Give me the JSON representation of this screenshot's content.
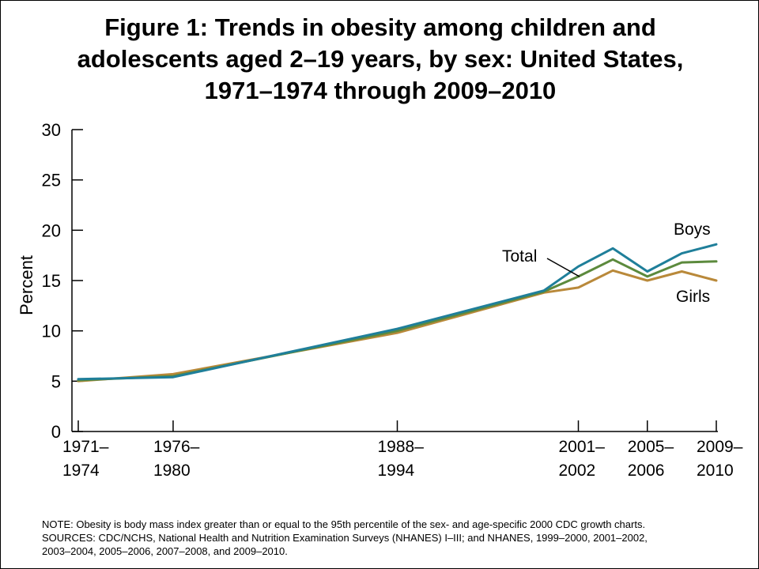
{
  "chart_data": {
    "type": "line",
    "title_lines": [
      "Figure 1: Trends in obesity among children and",
      "adolescents aged 2–19 years, by sex: United States,",
      "1971–1974 through 2009–2010"
    ],
    "ylabel": "Percent",
    "xlabel": "",
    "ylim": [
      0,
      30
    ],
    "yticks": [
      "0",
      "5",
      "10",
      "15",
      "20",
      "25",
      "30"
    ],
    "x_tick_labels": [
      {
        "line1": "1971–",
        "line2": "1974"
      },
      {
        "line1": "1976–",
        "line2": "1980"
      },
      {
        "line1": "1988–",
        "line2": "1994"
      },
      {
        "line1": "2001–",
        "line2": "2002"
      },
      {
        "line1": "2005–",
        "line2": "2006"
      },
      {
        "line1": "2009–",
        "line2": "2010"
      }
    ],
    "x": [
      1972.5,
      1978,
      1991,
      1999.5,
      2001.5,
      2003.5,
      2005.5,
      2007.5,
      2009.5
    ],
    "x_tick_positions": [
      1972.5,
      1978,
      1991,
      2001.5,
      2005.5,
      2009.5
    ],
    "xlim": [
      1972.5,
      2009.5
    ],
    "series": [
      {
        "name": "Girls",
        "label": "Girls",
        "color": "#b9893a",
        "values": [
          5.0,
          5.7,
          9.8,
          13.8,
          14.3,
          16.0,
          15.0,
          15.9,
          15.0
        ]
      },
      {
        "name": "Total",
        "label": "Total",
        "color": "#5c8a3d",
        "values": [
          5.1,
          5.5,
          10.0,
          13.9,
          15.4,
          17.1,
          15.4,
          16.8,
          16.9
        ]
      },
      {
        "name": "Boys",
        "label": "Boys",
        "color": "#1f7f9a",
        "values": [
          5.2,
          5.4,
          10.2,
          14.0,
          16.4,
          18.2,
          15.9,
          17.7,
          18.6
        ]
      }
    ]
  },
  "footnotes": {
    "note": "NOTE: Obesity is body mass index greater than or equal to the 95th percentile of the sex- and age-specific 2000 CDC growth charts.",
    "sources_line1": "SOURCES: CDC/NCHS, National Health and Nutrition Examination Surveys (NHANES) I–III; and NHANES, 1999–2000, 2001–2002,",
    "sources_line2": "2003–2004, 2005–2006, 2007–2008, and 2009–2010."
  }
}
